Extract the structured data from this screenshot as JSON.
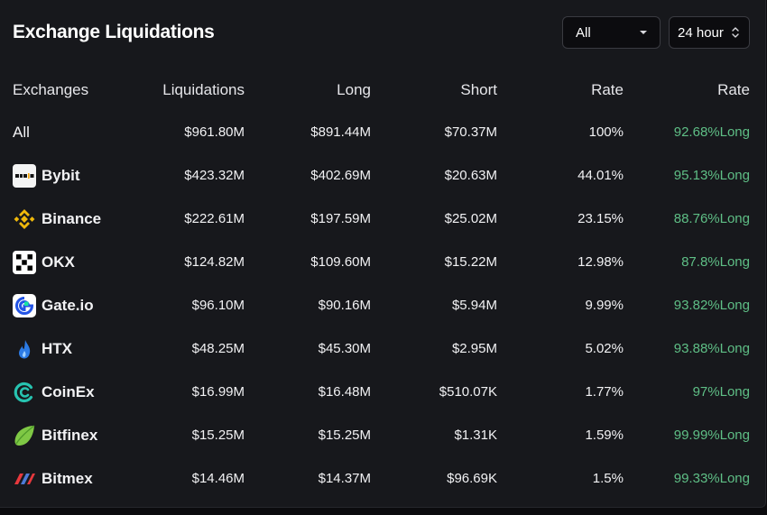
{
  "title": "Exchange Liquidations",
  "filters": {
    "exchange_select": "All",
    "time_select": "24 hour"
  },
  "colors": {
    "background": "#17181c",
    "text": "#ffffff",
    "long_rate": "#5fbf86"
  },
  "columns": [
    "Exchanges",
    "Liquidations",
    "Long",
    "Short",
    "Rate",
    "Rate"
  ],
  "rows": [
    {
      "exchange": "All",
      "icon": "",
      "liquidations": "$961.80M",
      "long": "$891.44M",
      "short": "$70.37M",
      "rate": "100%",
      "long_rate": "92.68%Long"
    },
    {
      "exchange": "Bybit",
      "icon": "bybit-logo-icon",
      "liquidations": "$423.32M",
      "long": "$402.69M",
      "short": "$20.63M",
      "rate": "44.01%",
      "long_rate": "95.13%Long"
    },
    {
      "exchange": "Binance",
      "icon": "binance-logo-icon",
      "liquidations": "$222.61M",
      "long": "$197.59M",
      "short": "$25.02M",
      "rate": "23.15%",
      "long_rate": "88.76%Long"
    },
    {
      "exchange": "OKX",
      "icon": "okx-logo-icon",
      "liquidations": "$124.82M",
      "long": "$109.60M",
      "short": "$15.22M",
      "rate": "12.98%",
      "long_rate": "87.8%Long"
    },
    {
      "exchange": "Gate.io",
      "icon": "gateio-logo-icon",
      "liquidations": "$96.10M",
      "long": "$90.16M",
      "short": "$5.94M",
      "rate": "9.99%",
      "long_rate": "93.82%Long"
    },
    {
      "exchange": "HTX",
      "icon": "htx-logo-icon",
      "liquidations": "$48.25M",
      "long": "$45.30M",
      "short": "$2.95M",
      "rate": "5.02%",
      "long_rate": "93.88%Long"
    },
    {
      "exchange": "CoinEx",
      "icon": "coinex-logo-icon",
      "liquidations": "$16.99M",
      "long": "$16.48M",
      "short": "$510.07K",
      "rate": "1.77%",
      "long_rate": "97%Long"
    },
    {
      "exchange": "Bitfinex",
      "icon": "bitfinex-logo-icon",
      "liquidations": "$15.25M",
      "long": "$15.25M",
      "short": "$1.31K",
      "rate": "1.59%",
      "long_rate": "99.99%Long"
    },
    {
      "exchange": "Bitmex",
      "icon": "bitmex-logo-icon",
      "liquidations": "$14.46M",
      "long": "$14.37M",
      "short": "$96.69K",
      "rate": "1.5%",
      "long_rate": "99.33%Long"
    }
  ]
}
